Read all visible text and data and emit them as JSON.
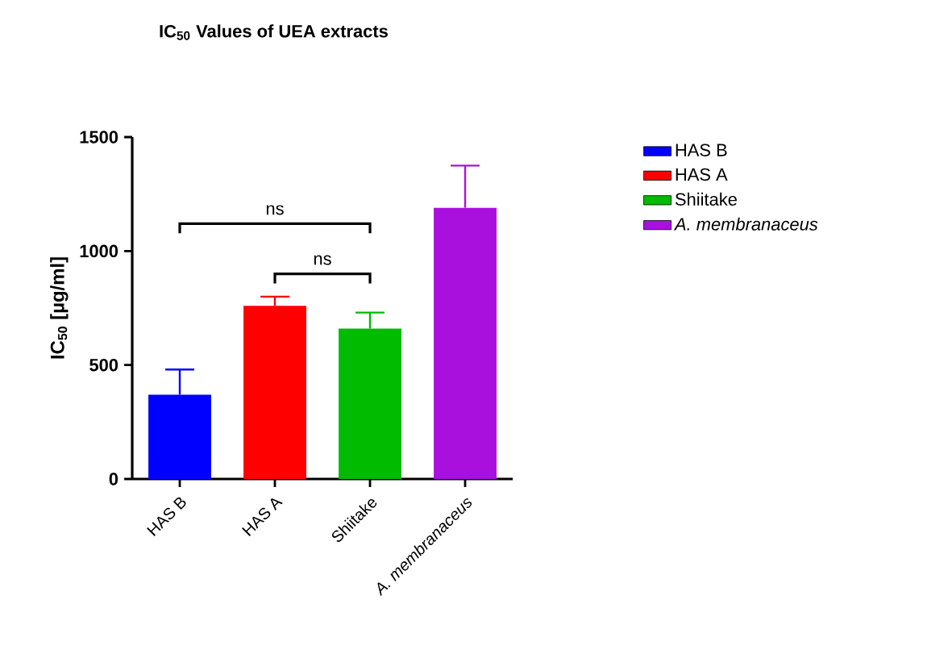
{
  "chart_data": {
    "type": "bar",
    "title": "IC$_{50}$ Values of UEA extracts",
    "ylabel": "IC$_{50}$ [µg/ml]",
    "categories": [
      "HAS B",
      "HAS A",
      "Shiitake",
      "*A. membranaceus*"
    ],
    "series": [
      {
        "name": "HAS B",
        "color": "#0000ff",
        "values": [
          370,
          null,
          null,
          null
        ],
        "errors": [
          [
            370,
            480
          ],
          null,
          null,
          null
        ]
      },
      {
        "name": "HAS A",
        "color": "#ff0000",
        "values": [
          null,
          760,
          null,
          null
        ],
        "errors": [
          null,
          [
            760,
            800
          ],
          null,
          null
        ]
      },
      {
        "name": "Shiitake",
        "color": "#00bb00",
        "values": [
          null,
          null,
          660,
          null
        ],
        "errors": [
          null,
          null,
          [
            660,
            730
          ],
          null
        ]
      },
      {
        "name": "*A. membranaceus*",
        "color": "#aa10dd",
        "values": [
          null,
          null,
          null,
          1190
        ],
        "errors": [
          null,
          null,
          null,
          [
            1190,
            1375
          ]
        ]
      }
    ],
    "ylim": [
      0,
      1500
    ],
    "yticks": [
      0,
      500,
      1000,
      1500
    ],
    "grid": false,
    "legend": "right",
    "annotations": [
      "ns",
      "ns"
    ]
  }
}
